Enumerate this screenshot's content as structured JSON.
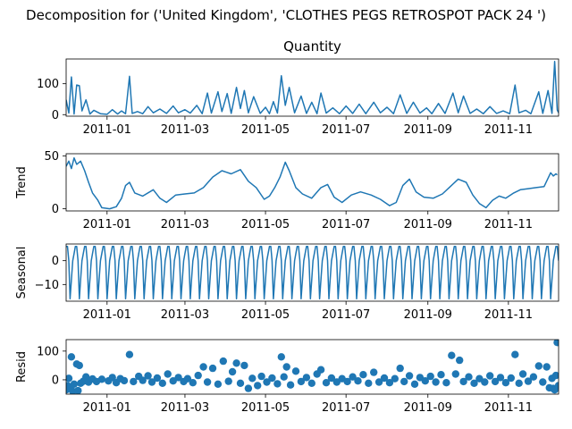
{
  "figure": {
    "suptitle": "Decomposition for ('United Kingdom', 'CLOTHES PEGS RETROSPOT PACK 24 ')",
    "series_color": "#1f77b4"
  },
  "chart_data": [
    {
      "type": "line",
      "title": "Quantity",
      "ylabel": "",
      "ylim": [
        -5,
        180
      ],
      "yticks": [
        0,
        100
      ],
      "xlim": [
        "2010-12-01",
        "2011-12-09"
      ],
      "xticks": [
        "2011-01",
        "2011-03",
        "2011-05",
        "2011-07",
        "2011-09",
        "2011-11"
      ],
      "points": [
        [
          "2010-12-01",
          48
        ],
        [
          "2010-12-03",
          5
        ],
        [
          "2010-12-05",
          122
        ],
        [
          "2010-12-07",
          2
        ],
        [
          "2010-12-09",
          96
        ],
        [
          "2010-12-11",
          94
        ],
        [
          "2010-12-13",
          12
        ],
        [
          "2010-12-16",
          48
        ],
        [
          "2010-12-19",
          2
        ],
        [
          "2010-12-22",
          14
        ],
        [
          "2010-12-27",
          3
        ],
        [
          "2011-01-01",
          1
        ],
        [
          "2011-01-05",
          16
        ],
        [
          "2011-01-09",
          2
        ],
        [
          "2011-01-12",
          12
        ],
        [
          "2011-01-15",
          3
        ],
        [
          "2011-01-18",
          124
        ],
        [
          "2011-01-20",
          4
        ],
        [
          "2011-01-24",
          10
        ],
        [
          "2011-01-28",
          3
        ],
        [
          "2011-02-01",
          26
        ],
        [
          "2011-02-05",
          6
        ],
        [
          "2011-02-10",
          18
        ],
        [
          "2011-02-15",
          4
        ],
        [
          "2011-02-20",
          28
        ],
        [
          "2011-02-24",
          6
        ],
        [
          "2011-03-01",
          16
        ],
        [
          "2011-03-05",
          5
        ],
        [
          "2011-03-10",
          30
        ],
        [
          "2011-03-14",
          3
        ],
        [
          "2011-03-18",
          70
        ],
        [
          "2011-03-21",
          5
        ],
        [
          "2011-03-26",
          74
        ],
        [
          "2011-03-29",
          10
        ],
        [
          "2011-04-02",
          68
        ],
        [
          "2011-04-05",
          4
        ],
        [
          "2011-04-09",
          88
        ],
        [
          "2011-04-12",
          20
        ],
        [
          "2011-04-15",
          78
        ],
        [
          "2011-04-18",
          6
        ],
        [
          "2011-04-22",
          58
        ],
        [
          "2011-04-27",
          4
        ],
        [
          "2011-05-01",
          24
        ],
        [
          "2011-05-04",
          3
        ],
        [
          "2011-05-07",
          42
        ],
        [
          "2011-05-10",
          5
        ],
        [
          "2011-05-13",
          126
        ],
        [
          "2011-05-16",
          30
        ],
        [
          "2011-05-19",
          88
        ],
        [
          "2011-05-23",
          6
        ],
        [
          "2011-05-28",
          60
        ],
        [
          "2011-06-01",
          4
        ],
        [
          "2011-06-05",
          40
        ],
        [
          "2011-06-09",
          3
        ],
        [
          "2011-06-12",
          70
        ],
        [
          "2011-06-16",
          5
        ],
        [
          "2011-06-21",
          22
        ],
        [
          "2011-06-26",
          3
        ],
        [
          "2011-07-01",
          28
        ],
        [
          "2011-07-06",
          4
        ],
        [
          "2011-07-11",
          34
        ],
        [
          "2011-07-16",
          3
        ],
        [
          "2011-07-22",
          40
        ],
        [
          "2011-07-27",
          6
        ],
        [
          "2011-08-01",
          24
        ],
        [
          "2011-08-06",
          3
        ],
        [
          "2011-08-11",
          64
        ],
        [
          "2011-08-16",
          4
        ],
        [
          "2011-08-21",
          40
        ],
        [
          "2011-08-26",
          5
        ],
        [
          "2011-08-31",
          22
        ],
        [
          "2011-09-04",
          3
        ],
        [
          "2011-09-09",
          36
        ],
        [
          "2011-09-14",
          4
        ],
        [
          "2011-09-20",
          70
        ],
        [
          "2011-09-24",
          6
        ],
        [
          "2011-09-28",
          60
        ],
        [
          "2011-10-03",
          4
        ],
        [
          "2011-10-08",
          18
        ],
        [
          "2011-10-13",
          3
        ],
        [
          "2011-10-18",
          26
        ],
        [
          "2011-10-23",
          4
        ],
        [
          "2011-10-28",
          12
        ],
        [
          "2011-11-02",
          3
        ],
        [
          "2011-11-06",
          96
        ],
        [
          "2011-11-09",
          6
        ],
        [
          "2011-11-14",
          14
        ],
        [
          "2011-11-18",
          3
        ],
        [
          "2011-11-24",
          74
        ],
        [
          "2011-11-27",
          4
        ],
        [
          "2011-12-01",
          78
        ],
        [
          "2011-12-04",
          4
        ],
        [
          "2011-12-06",
          172
        ],
        [
          "2011-12-08",
          15
        ],
        [
          "2011-12-09",
          6
        ]
      ]
    },
    {
      "type": "line",
      "title": "",
      "ylabel": "Trend",
      "ylim": [
        -2,
        52
      ],
      "yticks": [
        0,
        50
      ],
      "xlim": [
        "2010-12-01",
        "2011-12-09"
      ],
      "xticks": [
        "2011-01",
        "2011-03",
        "2011-05",
        "2011-07",
        "2011-09",
        "2011-11"
      ],
      "points": [
        [
          "2010-12-01",
          40
        ],
        [
          "2010-12-03",
          45
        ],
        [
          "2010-12-05",
          38
        ],
        [
          "2010-12-07",
          48
        ],
        [
          "2010-12-09",
          42
        ],
        [
          "2010-12-12",
          45
        ],
        [
          "2010-12-15",
          36
        ],
        [
          "2010-12-18",
          25
        ],
        [
          "2010-12-21",
          15
        ],
        [
          "2010-12-25",
          8
        ],
        [
          "2010-12-28",
          1
        ],
        [
          "2011-01-03",
          0
        ],
        [
          "2011-01-08",
          2
        ],
        [
          "2011-01-12",
          10
        ],
        [
          "2011-01-15",
          22
        ],
        [
          "2011-01-18",
          25
        ],
        [
          "2011-01-22",
          15
        ],
        [
          "2011-01-28",
          12
        ],
        [
          "2011-02-05",
          18
        ],
        [
          "2011-02-10",
          10
        ],
        [
          "2011-02-15",
          6
        ],
        [
          "2011-02-22",
          13
        ],
        [
          "2011-03-01",
          14
        ],
        [
          "2011-03-08",
          15
        ],
        [
          "2011-03-15",
          20
        ],
        [
          "2011-03-22",
          30
        ],
        [
          "2011-03-29",
          36
        ],
        [
          "2011-04-05",
          33
        ],
        [
          "2011-04-12",
          37
        ],
        [
          "2011-04-18",
          26
        ],
        [
          "2011-04-24",
          20
        ],
        [
          "2011-04-30",
          9
        ],
        [
          "2011-05-04",
          12
        ],
        [
          "2011-05-08",
          20
        ],
        [
          "2011-05-12",
          30
        ],
        [
          "2011-05-16",
          44
        ],
        [
          "2011-05-19",
          36
        ],
        [
          "2011-05-24",
          20
        ],
        [
          "2011-05-29",
          14
        ],
        [
          "2011-06-05",
          10
        ],
        [
          "2011-06-12",
          20
        ],
        [
          "2011-06-17",
          23
        ],
        [
          "2011-06-22",
          11
        ],
        [
          "2011-06-28",
          6
        ],
        [
          "2011-07-05",
          13
        ],
        [
          "2011-07-12",
          16
        ],
        [
          "2011-07-20",
          13
        ],
        [
          "2011-07-27",
          9
        ],
        [
          "2011-08-03",
          3
        ],
        [
          "2011-08-08",
          6
        ],
        [
          "2011-08-13",
          22
        ],
        [
          "2011-08-18",
          28
        ],
        [
          "2011-08-23",
          16
        ],
        [
          "2011-08-29",
          11
        ],
        [
          "2011-09-05",
          10
        ],
        [
          "2011-09-12",
          14
        ],
        [
          "2011-09-18",
          21
        ],
        [
          "2011-09-24",
          28
        ],
        [
          "2011-09-30",
          25
        ],
        [
          "2011-10-05",
          13
        ],
        [
          "2011-10-10",
          5
        ],
        [
          "2011-10-15",
          1
        ],
        [
          "2011-10-20",
          8
        ],
        [
          "2011-10-25",
          12
        ],
        [
          "2011-10-30",
          10
        ],
        [
          "2011-11-05",
          15
        ],
        [
          "2011-11-10",
          18
        ],
        [
          "2011-11-16",
          19
        ],
        [
          "2011-11-22",
          20
        ],
        [
          "2011-11-28",
          21
        ],
        [
          "2011-12-03",
          34
        ],
        [
          "2011-12-05",
          31
        ],
        [
          "2011-12-07",
          33
        ],
        [
          "2011-12-08",
          32
        ]
      ]
    },
    {
      "type": "line",
      "title": "",
      "ylabel": "Seasonal",
      "ylim": [
        -17,
        7
      ],
      "yticks": [
        -10,
        0
      ],
      "xlim": [
        "2010-12-01",
        "2011-12-09"
      ],
      "xticks": [
        "2011-01",
        "2011-03",
        "2011-05",
        "2011-07",
        "2011-09",
        "2011-11"
      ],
      "periodic": {
        "start": "2010-12-01",
        "end": "2011-12-09",
        "period_days": 7,
        "cycle": [
          6,
          6,
          0,
          -16,
          -8,
          0,
          3
        ]
      }
    },
    {
      "type": "scatter",
      "title": "",
      "ylabel": "Resid",
      "ylim": [
        -50,
        140
      ],
      "yticks": [
        0,
        100
      ],
      "xlim": [
        "2010-12-01",
        "2011-12-09"
      ],
      "xticks": [
        "2011-01",
        "2011-03",
        "2011-05",
        "2011-07",
        "2011-09",
        "2011-11"
      ],
      "points": [
        [
          "2010-12-01",
          -35
        ],
        [
          "2010-12-02",
          -20
        ],
        [
          "2010-12-03",
          5
        ],
        [
          "2010-12-04",
          -30
        ],
        [
          "2010-12-05",
          80
        ],
        [
          "2010-12-06",
          -40
        ],
        [
          "2010-12-07",
          -15
        ],
        [
          "2010-12-09",
          55
        ],
        [
          "2010-12-10",
          -38
        ],
        [
          "2010-12-11",
          50
        ],
        [
          "2010-12-12",
          -12
        ],
        [
          "2010-12-14",
          -5
        ],
        [
          "2010-12-16",
          10
        ],
        [
          "2010-12-18",
          -8
        ],
        [
          "2010-12-21",
          3
        ],
        [
          "2010-12-24",
          -6
        ],
        [
          "2010-12-28",
          2
        ],
        [
          "2011-01-02",
          -4
        ],
        [
          "2011-01-05",
          8
        ],
        [
          "2011-01-08",
          -10
        ],
        [
          "2011-01-11",
          4
        ],
        [
          "2011-01-14",
          -3
        ],
        [
          "2011-01-18",
          88
        ],
        [
          "2011-01-21",
          -6
        ],
        [
          "2011-01-25",
          12
        ],
        [
          "2011-01-28",
          -2
        ],
        [
          "2011-02-01",
          14
        ],
        [
          "2011-02-04",
          -8
        ],
        [
          "2011-02-08",
          6
        ],
        [
          "2011-02-12",
          -12
        ],
        [
          "2011-02-16",
          20
        ],
        [
          "2011-02-20",
          -4
        ],
        [
          "2011-02-24",
          8
        ],
        [
          "2011-02-28",
          -6
        ],
        [
          "2011-03-03",
          4
        ],
        [
          "2011-03-07",
          -10
        ],
        [
          "2011-03-11",
          15
        ],
        [
          "2011-03-15",
          45
        ],
        [
          "2011-03-18",
          -8
        ],
        [
          "2011-03-22",
          40
        ],
        [
          "2011-03-26",
          -15
        ],
        [
          "2011-03-30",
          65
        ],
        [
          "2011-04-03",
          -5
        ],
        [
          "2011-04-06",
          28
        ],
        [
          "2011-04-09",
          58
        ],
        [
          "2011-04-12",
          -12
        ],
        [
          "2011-04-15",
          50
        ],
        [
          "2011-04-18",
          -30
        ],
        [
          "2011-04-21",
          5
        ],
        [
          "2011-04-25",
          -20
        ],
        [
          "2011-04-28",
          12
        ],
        [
          "2011-05-02",
          -8
        ],
        [
          "2011-05-06",
          6
        ],
        [
          "2011-05-10",
          -14
        ],
        [
          "2011-05-13",
          80
        ],
        [
          "2011-05-15",
          10
        ],
        [
          "2011-05-17",
          45
        ],
        [
          "2011-05-20",
          -18
        ],
        [
          "2011-05-24",
          30
        ],
        [
          "2011-05-28",
          -6
        ],
        [
          "2011-06-01",
          8
        ],
        [
          "2011-06-05",
          -12
        ],
        [
          "2011-06-09",
          20
        ],
        [
          "2011-06-12",
          35
        ],
        [
          "2011-06-16",
          -10
        ],
        [
          "2011-06-20",
          6
        ],
        [
          "2011-06-24",
          -8
        ],
        [
          "2011-06-28",
          4
        ],
        [
          "2011-07-02",
          -6
        ],
        [
          "2011-07-06",
          10
        ],
        [
          "2011-07-10",
          -4
        ],
        [
          "2011-07-14",
          18
        ],
        [
          "2011-07-18",
          -12
        ],
        [
          "2011-07-22",
          26
        ],
        [
          "2011-07-26",
          -8
        ],
        [
          "2011-07-30",
          6
        ],
        [
          "2011-08-03",
          -10
        ],
        [
          "2011-08-07",
          4
        ],
        [
          "2011-08-11",
          40
        ],
        [
          "2011-08-14",
          -6
        ],
        [
          "2011-08-18",
          14
        ],
        [
          "2011-08-22",
          -15
        ],
        [
          "2011-08-26",
          8
        ],
        [
          "2011-08-30",
          -4
        ],
        [
          "2011-09-03",
          12
        ],
        [
          "2011-09-07",
          -8
        ],
        [
          "2011-09-11",
          18
        ],
        [
          "2011-09-15",
          -10
        ],
        [
          "2011-09-19",
          85
        ],
        [
          "2011-09-22",
          20
        ],
        [
          "2011-09-25",
          68
        ],
        [
          "2011-09-28",
          -6
        ],
        [
          "2011-10-02",
          10
        ],
        [
          "2011-10-06",
          -12
        ],
        [
          "2011-10-10",
          4
        ],
        [
          "2011-10-14",
          -8
        ],
        [
          "2011-10-18",
          14
        ],
        [
          "2011-10-22",
          -6
        ],
        [
          "2011-10-26",
          8
        ],
        [
          "2011-10-30",
          -10
        ],
        [
          "2011-11-03",
          6
        ],
        [
          "2011-11-06",
          88
        ],
        [
          "2011-11-09",
          -12
        ],
        [
          "2011-11-12",
          20
        ],
        [
          "2011-11-16",
          -5
        ],
        [
          "2011-11-20",
          10
        ],
        [
          "2011-11-24",
          48
        ],
        [
          "2011-11-27",
          -8
        ],
        [
          "2011-11-30",
          45
        ],
        [
          "2011-12-02",
          -28
        ],
        [
          "2011-12-04",
          5
        ],
        [
          "2011-12-05",
          -30
        ],
        [
          "2011-12-06",
          -35
        ],
        [
          "2011-12-07",
          15
        ],
        [
          "2011-12-08",
          130
        ],
        [
          "2011-12-09",
          -20
        ]
      ]
    }
  ]
}
